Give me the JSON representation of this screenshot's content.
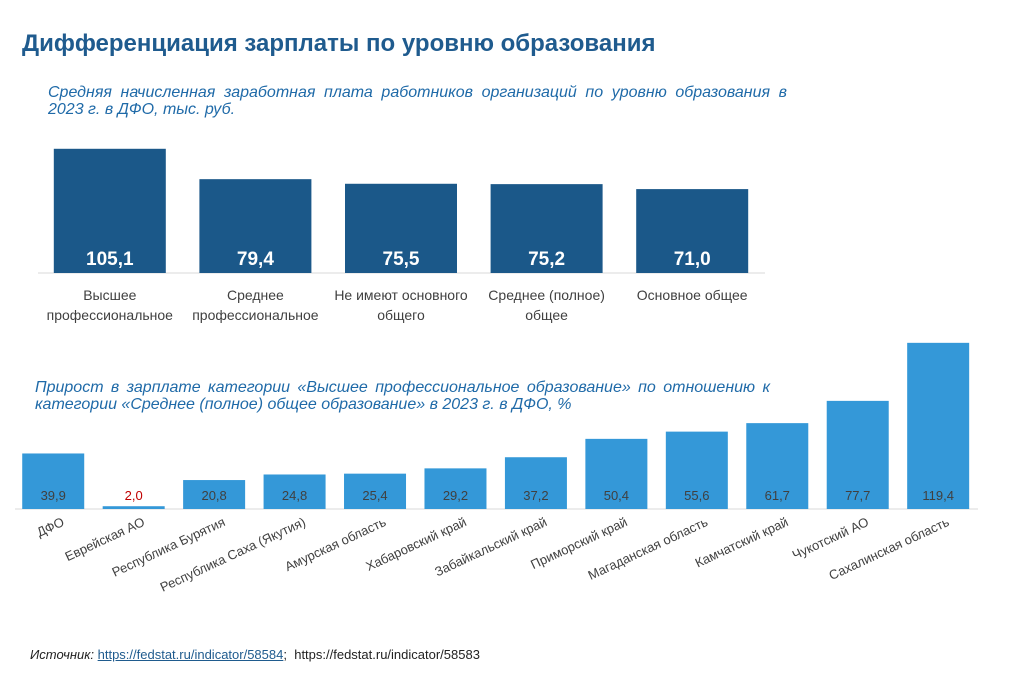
{
  "title": "Дифференциация зарплаты по уровню образования",
  "chart_data": [
    {
      "type": "bar",
      "title": "Средняя начисленная заработная плата работников организаций по уровню образования в 2023 г. в ДФО, тыс. руб.",
      "categories": [
        "Высшее профессиональное",
        "Среднее профессиональное",
        "Не имеют основного общего",
        "Среднее (полное) общее",
        "Основное общее"
      ],
      "values": [
        105.1,
        79.4,
        75.5,
        75.2,
        71.0
      ],
      "value_labels": [
        "105,1",
        "79,4",
        "75,5",
        "75,2",
        "71,0"
      ],
      "color": "#1b5889",
      "ylim": [
        0,
        110
      ]
    },
    {
      "type": "bar",
      "title": "Прирост в зарплате категории «Высшее профессиональное образование» по отношению к категории «Среднее (полное) общее образование» в 2023 г. в ДФО, %",
      "categories": [
        "ДФО",
        "Еврейская АО",
        "Республика Бурятия",
        "Республика Саха (Якутия)",
        "Амурская область",
        "Хабаровский край",
        "Забайкальский край",
        "Приморский край",
        "Магаданская область",
        "Камчатский край",
        "Чукотский АО",
        "Сахалинская область"
      ],
      "values": [
        39.9,
        2.0,
        20.8,
        24.8,
        25.4,
        29.2,
        37.2,
        50.4,
        55.6,
        61.7,
        77.7,
        119.4
      ],
      "value_labels": [
        "39,9",
        "2,0",
        "20,8",
        "24,8",
        "25,4",
        "29,2",
        "37,2",
        "50,4",
        "55,6",
        "61,7",
        "77,7",
        "119,4"
      ],
      "color": "#3498d8",
      "ylim": [
        0,
        120
      ]
    }
  ],
  "source": {
    "label": "Источник:",
    "links": [
      "https://fedstat.ru/indicator/58584",
      "https://fedstat.ru/indicator/58583"
    ],
    "separator": ";"
  }
}
